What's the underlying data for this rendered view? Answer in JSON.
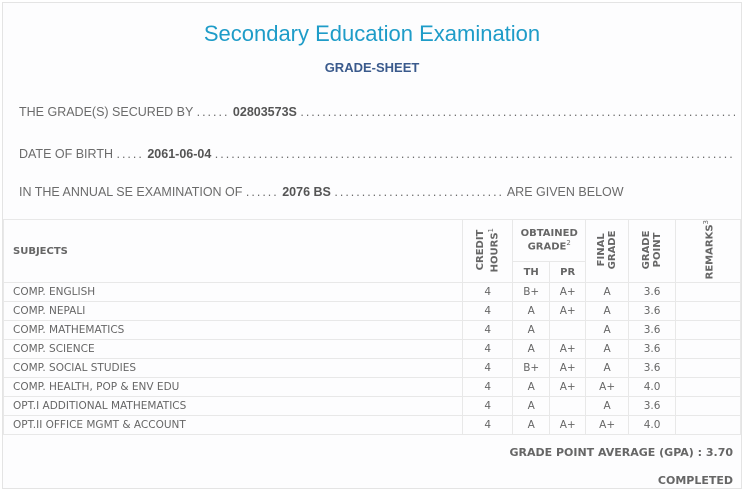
{
  "header": {
    "title": "Secondary Education Examination",
    "subtitle": "GRADE-SHEET"
  },
  "info": {
    "secured_by_label": "THE GRADE(S) SECURED BY",
    "symbol_no": "02803573S",
    "dob_label": "DATE OF BIRTH",
    "dob": "2061-06-04",
    "exam_label": "IN THE ANNUAL SE EXAMINATION OF",
    "exam_year": "2076 BS",
    "exam_suffix": "ARE GIVEN BELOW"
  },
  "table": {
    "headers": {
      "subjects": "SUBJECTS",
      "credit_hours": "CREDIT HOURS",
      "credit_sup": "1",
      "obtained_grade": "OBTAINED GRADE",
      "obtained_sup": "2",
      "th": "TH",
      "pr": "PR",
      "final_grade": "FINAL GRADE",
      "grade_point": "GRADE POINT",
      "remarks": "REMARKS",
      "remarks_sup": "3"
    },
    "rows": [
      {
        "subject": "COMP. ENGLISH",
        "credit": "4",
        "th": "B+",
        "pr": "A+",
        "final": "A",
        "gp": "3.6",
        "remarks": ""
      },
      {
        "subject": "COMP. NEPALI",
        "credit": "4",
        "th": "A",
        "pr": "A+",
        "final": "A",
        "gp": "3.6",
        "remarks": ""
      },
      {
        "subject": "COMP. MATHEMATICS",
        "credit": "4",
        "th": "A",
        "pr": "",
        "final": "A",
        "gp": "3.6",
        "remarks": ""
      },
      {
        "subject": "COMP. SCIENCE",
        "credit": "4",
        "th": "A",
        "pr": "A+",
        "final": "A",
        "gp": "3.6",
        "remarks": ""
      },
      {
        "subject": "COMP. SOCIAL STUDIES",
        "credit": "4",
        "th": "B+",
        "pr": "A+",
        "final": "A",
        "gp": "3.6",
        "remarks": ""
      },
      {
        "subject": "COMP. HEALTH, POP & ENV EDU",
        "credit": "4",
        "th": "A",
        "pr": "A+",
        "final": "A+",
        "gp": "4.0",
        "remarks": ""
      },
      {
        "subject": "OPT.I ADDITIONAL MATHEMATICS",
        "credit": "4",
        "th": "A",
        "pr": "",
        "final": "A",
        "gp": "3.6",
        "remarks": ""
      },
      {
        "subject": "OPT.II OFFICE MGMT & ACCOUNT",
        "credit": "4",
        "th": "A",
        "pr": "A+",
        "final": "A+",
        "gp": "4.0",
        "remarks": ""
      }
    ]
  },
  "footer": {
    "gpa_label": "GRADE POINT AVERAGE (GPA) :",
    "gpa": "3.70",
    "status": "COMPLETED"
  },
  "colors": {
    "title": "#1e9cc8",
    "subtitle": "#3a5a8c"
  }
}
